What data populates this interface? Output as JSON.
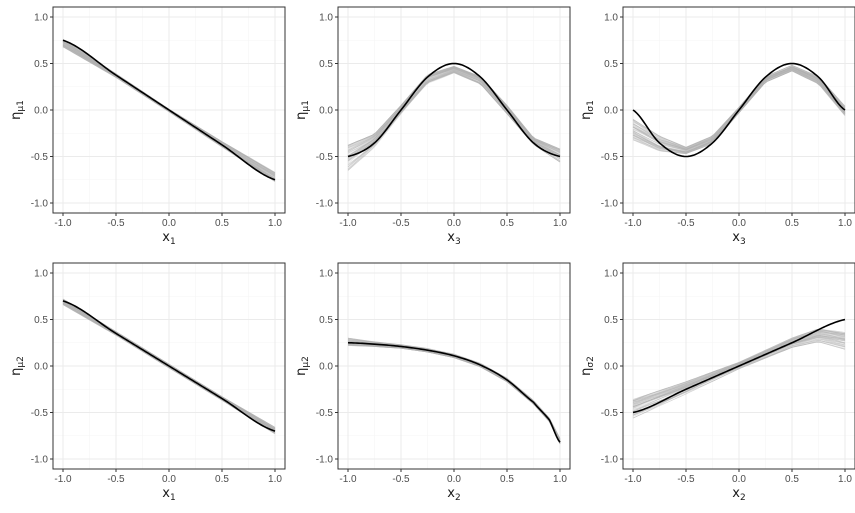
{
  "figure": {
    "layout": "2x3 grid of panels",
    "colors": {
      "truth": "#000000",
      "estimates": "#b3b3b3",
      "grid_major": "#ebebeb",
      "grid_minor": "#f5f5f5",
      "panel_border": "#333333"
    }
  },
  "chart_data": [
    {
      "type": "line",
      "title": "",
      "xlabel": "x1",
      "ylabel": "η μ1",
      "xlim": [
        -1,
        1
      ],
      "ylim": [
        -1,
        1
      ],
      "x_ticks": [
        "-1.0",
        "-0.5",
        "0.0",
        "0.5",
        "1.0"
      ],
      "y_ticks": [
        "-1.0",
        "-0.5",
        "0.0",
        "0.5",
        "1.0"
      ],
      "grid": true,
      "series": [
        {
          "role": "truth",
          "color": "#000000",
          "x": [
            -1,
            -0.5,
            0,
            0.5,
            1
          ],
          "y": [
            0.75,
            0.375,
            0,
            -0.375,
            -0.75
          ]
        },
        {
          "role": "estimate-band",
          "color": "#b3b3b3",
          "x": [
            -1,
            -0.5,
            0,
            0.5,
            1
          ],
          "y_upper": [
            0.76,
            0.39,
            0.01,
            -0.34,
            -0.67
          ],
          "y_lower": [
            0.68,
            0.35,
            -0.02,
            -0.4,
            -0.77
          ]
        }
      ]
    },
    {
      "type": "line",
      "title": "",
      "xlabel": "x3",
      "ylabel": "η μ1",
      "xlim": [
        -1,
        1
      ],
      "ylim": [
        -1,
        1
      ],
      "x_ticks": [
        "-1.0",
        "-0.5",
        "0.0",
        "0.5",
        "1.0"
      ],
      "y_ticks": [
        "-1.0",
        "-0.5",
        "0.0",
        "0.5",
        "1.0"
      ],
      "grid": true,
      "series": [
        {
          "role": "truth",
          "color": "#000000",
          "x": [
            -1,
            -0.75,
            -0.5,
            -0.25,
            0,
            0.25,
            0.5,
            0.75,
            1
          ],
          "y": [
            -0.5,
            -0.354,
            0,
            0.354,
            0.5,
            0.354,
            0,
            -0.354,
            -0.5
          ]
        },
        {
          "role": "estimate-band",
          "color": "#b3b3b3",
          "x": [
            -1,
            -0.75,
            -0.5,
            -0.25,
            0,
            0.25,
            0.5,
            0.75,
            1
          ],
          "y_upper": [
            -0.38,
            -0.26,
            0.05,
            0.38,
            0.47,
            0.36,
            0.05,
            -0.3,
            -0.42
          ],
          "y_lower": [
            -0.65,
            -0.4,
            -0.05,
            0.28,
            0.4,
            0.28,
            -0.04,
            -0.37,
            -0.56
          ]
        }
      ]
    },
    {
      "type": "line",
      "title": "",
      "xlabel": "x3",
      "ylabel": "η σ1",
      "xlim": [
        -1,
        1
      ],
      "ylim": [
        -1,
        1
      ],
      "x_ticks": [
        "-1.0",
        "-0.5",
        "0.0",
        "0.5",
        "1.0"
      ],
      "y_ticks": [
        "-1.0",
        "-0.5",
        "0.0",
        "0.5",
        "1.0"
      ],
      "grid": true,
      "series": [
        {
          "role": "truth",
          "color": "#000000",
          "x": [
            -1,
            -0.75,
            -0.5,
            -0.25,
            0,
            0.25,
            0.5,
            0.75,
            1
          ],
          "y": [
            0,
            -0.354,
            -0.5,
            -0.354,
            0,
            0.354,
            0.5,
            0.354,
            0
          ]
        },
        {
          "role": "estimate-band",
          "color": "#b3b3b3",
          "x": [
            -1,
            -0.75,
            -0.5,
            -0.25,
            0,
            0.25,
            0.5,
            0.75,
            1
          ],
          "y_upper": [
            -0.1,
            -0.28,
            -0.4,
            -0.28,
            0.03,
            0.36,
            0.48,
            0.36,
            0.04
          ],
          "y_lower": [
            -0.32,
            -0.44,
            -0.47,
            -0.36,
            -0.03,
            0.3,
            0.42,
            0.28,
            -0.06
          ]
        }
      ]
    },
    {
      "type": "line",
      "title": "",
      "xlabel": "x1",
      "ylabel": "η μ2",
      "xlim": [
        -1,
        1
      ],
      "ylim": [
        -1,
        1
      ],
      "x_ticks": [
        "-1.0",
        "-0.5",
        "0.0",
        "0.5",
        "1.0"
      ],
      "y_ticks": [
        "-1.0",
        "-0.5",
        "0.0",
        "0.5",
        "1.0"
      ],
      "grid": true,
      "series": [
        {
          "role": "truth",
          "color": "#000000",
          "x": [
            -1,
            -0.5,
            0,
            0.5,
            1
          ],
          "y": [
            0.7,
            0.35,
            0,
            -0.35,
            -0.7
          ]
        },
        {
          "role": "estimate-band",
          "color": "#b3b3b3",
          "x": [
            -1,
            -0.5,
            0,
            0.5,
            1
          ],
          "y_upper": [
            0.72,
            0.37,
            0.02,
            -0.33,
            -0.66
          ],
          "y_lower": [
            0.66,
            0.33,
            -0.02,
            -0.37,
            -0.73
          ]
        }
      ]
    },
    {
      "type": "line",
      "title": "",
      "xlabel": "x2",
      "ylabel": "η μ2",
      "xlim": [
        -1,
        1
      ],
      "ylim": [
        -1,
        1
      ],
      "x_ticks": [
        "-1.0",
        "-0.5",
        "0.0",
        "0.5",
        "1.0"
      ],
      "y_ticks": [
        "-1.0",
        "-0.5",
        "0.0",
        "0.5",
        "1.0"
      ],
      "grid": true,
      "series": [
        {
          "role": "truth",
          "color": "#000000",
          "x": [
            -1,
            -0.75,
            -0.5,
            -0.25,
            0,
            0.25,
            0.5,
            0.75,
            0.9,
            1
          ],
          "y": [
            0.25,
            0.235,
            0.21,
            0.17,
            0.11,
            0.01,
            -0.15,
            -0.39,
            -0.58,
            -0.82
          ]
        },
        {
          "role": "estimate-band",
          "color": "#b3b3b3",
          "x": [
            -1,
            -0.75,
            -0.5,
            -0.25,
            0,
            0.25,
            0.5,
            0.75,
            0.9,
            1
          ],
          "y_upper": [
            0.3,
            0.26,
            0.23,
            0.19,
            0.13,
            0.03,
            -0.13,
            -0.37,
            -0.56,
            -0.78
          ],
          "y_lower": [
            0.22,
            0.21,
            0.19,
            0.15,
            0.09,
            -0.01,
            -0.17,
            -0.41,
            -0.6,
            -0.84
          ]
        }
      ]
    },
    {
      "type": "line",
      "title": "",
      "xlabel": "x2",
      "ylabel": "η σ2",
      "xlim": [
        -1,
        1
      ],
      "ylim": [
        -1,
        1
      ],
      "x_ticks": [
        "-1.0",
        "-0.5",
        "0.0",
        "0.5",
        "1.0"
      ],
      "y_ticks": [
        "-1.0",
        "-0.5",
        "0.0",
        "0.5",
        "1.0"
      ],
      "grid": true,
      "series": [
        {
          "role": "truth",
          "color": "#000000",
          "x": [
            -1,
            -0.5,
            0,
            0.5,
            1
          ],
          "y": [
            -0.5,
            -0.25,
            0,
            0.25,
            0.5
          ]
        },
        {
          "role": "estimate-band",
          "color": "#b3b3b3",
          "x": [
            -1,
            -0.5,
            0,
            0.5,
            0.75,
            1
          ],
          "y_upper": [
            -0.36,
            -0.17,
            0.04,
            0.3,
            0.4,
            0.36
          ],
          "y_lower": [
            -0.56,
            -0.3,
            -0.03,
            0.2,
            0.26,
            0.18
          ]
        }
      ]
    }
  ]
}
